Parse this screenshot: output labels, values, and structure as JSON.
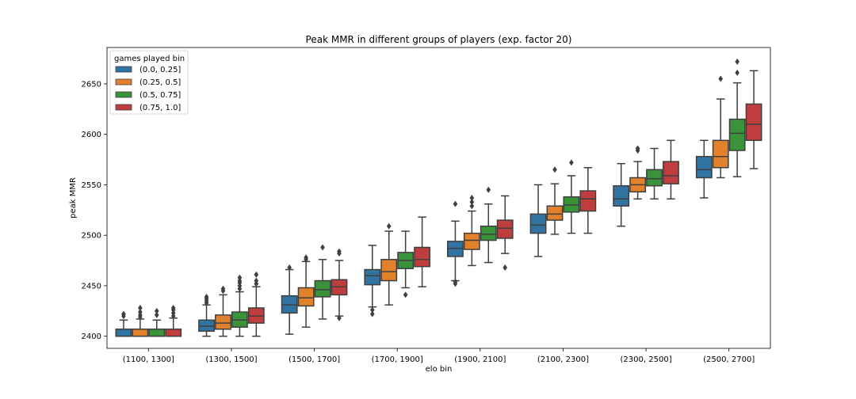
{
  "chart_data": {
    "type": "box",
    "title": "Peak MMR in different groups of players (exp. factor 20)",
    "xlabel": "elo bin",
    "ylabel": "peak MMR",
    "ylim": [
      2388,
      2686
    ],
    "yticks": [
      2400,
      2450,
      2500,
      2550,
      2600,
      2650
    ],
    "grid": false,
    "legend": {
      "title": "games played bin",
      "position": "top-left"
    },
    "categories": [
      "(1100, 1300]",
      "(1300, 1500]",
      "(1500, 1700]",
      "(1700, 1900]",
      "(1900, 2100]",
      "(2100, 2300]",
      "(2300, 2500]",
      "(2500, 2700]"
    ],
    "series": [
      {
        "name": "(0.0, 0.25]",
        "color": "#3274a1",
        "boxes": [
          {
            "whislo": 2400,
            "q1": 2400,
            "med": 2400,
            "q3": 2407,
            "whishi": 2416,
            "fliers": [
              2420,
              2422
            ]
          },
          {
            "whislo": 2400,
            "q1": 2405,
            "med": 2410,
            "q3": 2416,
            "whishi": 2431,
            "fliers": [
              2433,
              2435,
              2437,
              2439
            ]
          },
          {
            "whislo": 2402,
            "q1": 2423,
            "med": 2431,
            "q3": 2440,
            "whishi": 2466,
            "fliers": [
              2468
            ]
          },
          {
            "whislo": 2429,
            "q1": 2451,
            "med": 2460,
            "q3": 2466,
            "whishi": 2490,
            "fliers": [
              2422,
              2426
            ]
          },
          {
            "whislo": 2455,
            "q1": 2479,
            "med": 2487,
            "q3": 2494,
            "whishi": 2514,
            "fliers": [
              2452,
              2454,
              2531
            ]
          },
          {
            "whislo": 2479,
            "q1": 2502,
            "med": 2510,
            "q3": 2521,
            "whishi": 2550,
            "fliers": []
          },
          {
            "whislo": 2509,
            "q1": 2529,
            "med": 2536,
            "q3": 2549,
            "whishi": 2571,
            "fliers": []
          },
          {
            "whislo": 2537,
            "q1": 2557,
            "med": 2565,
            "q3": 2578,
            "whishi": 2594,
            "fliers": []
          }
        ]
      },
      {
        "name": "(0.25, 0.5]",
        "color": "#e1812c",
        "boxes": [
          {
            "whislo": 2400,
            "q1": 2400,
            "med": 2400,
            "q3": 2407,
            "whishi": 2417,
            "fliers": [
              2419,
              2421,
              2424,
              2428
            ]
          },
          {
            "whislo": 2400,
            "q1": 2407,
            "med": 2413,
            "q3": 2421,
            "whishi": 2441,
            "fliers": [
              2445,
              2447
            ]
          },
          {
            "whislo": 2409,
            "q1": 2430,
            "med": 2438,
            "q3": 2448,
            "whishi": 2474,
            "fliers": [
              2476,
              2478
            ]
          },
          {
            "whislo": 2431,
            "q1": 2455,
            "med": 2464,
            "q3": 2476,
            "whishi": 2504,
            "fliers": [
              2509
            ]
          },
          {
            "whislo": 2470,
            "q1": 2486,
            "med": 2495,
            "q3": 2502,
            "whishi": 2524,
            "fliers": [
              2529,
              2533,
              2537
            ]
          },
          {
            "whislo": 2501,
            "q1": 2515,
            "med": 2521,
            "q3": 2529,
            "whishi": 2551,
            "fliers": [
              2565
            ]
          },
          {
            "whislo": 2536,
            "q1": 2543,
            "med": 2550,
            "q3": 2557,
            "whishi": 2573,
            "fliers": [
              2584,
              2586
            ]
          },
          {
            "whislo": 2557,
            "q1": 2567,
            "med": 2578,
            "q3": 2594,
            "whishi": 2635,
            "fliers": [
              2655
            ]
          }
        ]
      },
      {
        "name": "(0.5, 0.75]",
        "color": "#3a923a",
        "boxes": [
          {
            "whislo": 2400,
            "q1": 2400,
            "med": 2400,
            "q3": 2407,
            "whishi": 2416,
            "fliers": [
              2421,
              2425
            ]
          },
          {
            "whislo": 2400,
            "q1": 2409,
            "med": 2416,
            "q3": 2424,
            "whishi": 2444,
            "fliers": [
              2447,
              2450,
              2453,
              2455,
              2458
            ]
          },
          {
            "whislo": 2417,
            "q1": 2439,
            "med": 2446,
            "q3": 2455,
            "whishi": 2476,
            "fliers": [
              2488
            ]
          },
          {
            "whislo": 2448,
            "q1": 2467,
            "med": 2475,
            "q3": 2483,
            "whishi": 2504,
            "fliers": [
              2441
            ]
          },
          {
            "whislo": 2473,
            "q1": 2495,
            "med": 2501,
            "q3": 2509,
            "whishi": 2531,
            "fliers": [
              2545
            ]
          },
          {
            "whislo": 2502,
            "q1": 2523,
            "med": 2530,
            "q3": 2538,
            "whishi": 2559,
            "fliers": [
              2572
            ]
          },
          {
            "whislo": 2536,
            "q1": 2549,
            "med": 2556,
            "q3": 2565,
            "whishi": 2586,
            "fliers": []
          },
          {
            "whislo": 2558,
            "q1": 2584,
            "med": 2601,
            "q3": 2615,
            "whishi": 2651,
            "fliers": [
              2661,
              2672
            ]
          }
        ]
      },
      {
        "name": "(0.75, 1.0]",
        "color": "#c03d3e",
        "boxes": [
          {
            "whislo": 2400,
            "q1": 2400,
            "med": 2400,
            "q3": 2407,
            "whishi": 2418,
            "fliers": [
              2420,
              2423,
              2426,
              2428
            ]
          },
          {
            "whislo": 2400,
            "q1": 2413,
            "med": 2420,
            "q3": 2428,
            "whishi": 2449,
            "fliers": [
              2452,
              2455,
              2461
            ]
          },
          {
            "whislo": 2420,
            "q1": 2441,
            "med": 2449,
            "q3": 2456,
            "whishi": 2475,
            "fliers": [
              2418,
              2482,
              2484
            ]
          },
          {
            "whislo": 2449,
            "q1": 2469,
            "med": 2476,
            "q3": 2488,
            "whishi": 2518,
            "fliers": []
          },
          {
            "whislo": 2482,
            "q1": 2497,
            "med": 2507,
            "q3": 2515,
            "whishi": 2539,
            "fliers": [
              2468
            ]
          },
          {
            "whislo": 2502,
            "q1": 2524,
            "med": 2536,
            "q3": 2544,
            "whishi": 2567,
            "fliers": []
          },
          {
            "whislo": 2536,
            "q1": 2551,
            "med": 2559,
            "q3": 2573,
            "whishi": 2594,
            "fliers": []
          },
          {
            "whislo": 2566,
            "q1": 2594,
            "med": 2610,
            "q3": 2630,
            "whishi": 2663,
            "fliers": []
          }
        ]
      }
    ]
  }
}
